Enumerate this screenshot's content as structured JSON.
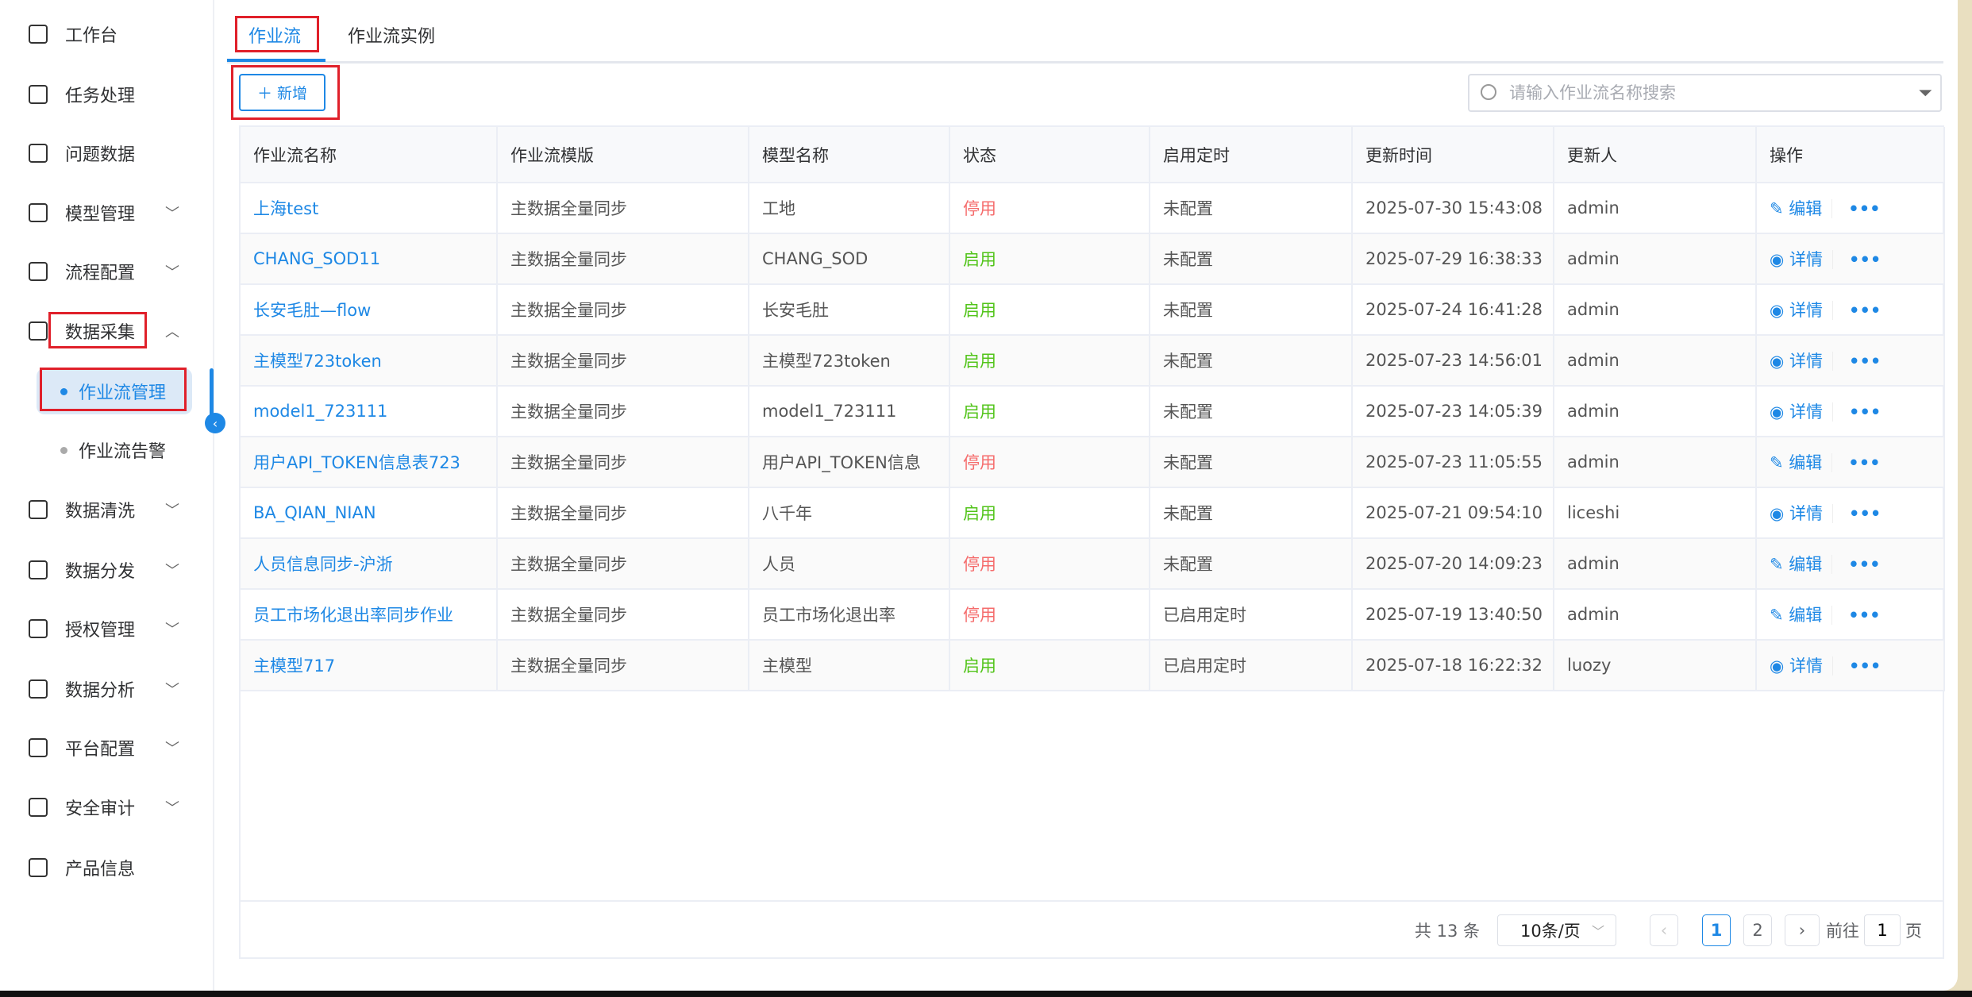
{
  "sidebar": {
    "items": [
      {
        "label": "工作台",
        "icon": "workbench-icon",
        "chevron": ""
      },
      {
        "label": "任务处理",
        "icon": "task-icon",
        "chevron": ""
      },
      {
        "label": "问题数据",
        "icon": "document-icon",
        "chevron": ""
      },
      {
        "label": "模型管理",
        "icon": "database-icon",
        "chevron": "﹀"
      },
      {
        "label": "流程配置",
        "icon": "grid-icon",
        "chevron": "﹀"
      },
      {
        "label": "数据采集",
        "icon": "sitemap-icon",
        "chevron": "︿"
      },
      {
        "label": "数据清洗",
        "icon": "grid-icon",
        "chevron": "﹀"
      },
      {
        "label": "数据分发",
        "icon": "send-icon",
        "chevron": "﹀"
      },
      {
        "label": "授权管理",
        "icon": "shield-icon",
        "chevron": "﹀"
      },
      {
        "label": "数据分析",
        "icon": "grid-icon",
        "chevron": "﹀"
      },
      {
        "label": "平台配置",
        "icon": "wallet-icon",
        "chevron": "﹀"
      },
      {
        "label": "安全审计",
        "icon": "audit-icon",
        "chevron": "﹀"
      },
      {
        "label": "产品信息",
        "icon": "info-list-icon",
        "chevron": ""
      }
    ],
    "subitems": [
      {
        "label": "作业流管理",
        "active": true
      },
      {
        "label": "作业流告警",
        "active": false
      }
    ]
  },
  "tabs": [
    {
      "label": "作业流",
      "active": true
    },
    {
      "label": "作业流实例",
      "active": false
    }
  ],
  "toolbar": {
    "add_label": "＋ 新增",
    "search_placeholder": "请输入作业流名称搜索"
  },
  "table": {
    "columns": [
      "作业流名称",
      "作业流模版",
      "模型名称",
      "状态",
      "启用定时",
      "更新时间",
      "更新人",
      "操作"
    ],
    "rows": [
      [
        "上海test",
        "主数据全量同步",
        "工地",
        "停用",
        "未配置",
        "2025-07-30 15:43:08",
        "admin",
        "编辑"
      ],
      [
        "CHANG_SOD11",
        "主数据全量同步",
        "CHANG_SOD",
        "启用",
        "未配置",
        "2025-07-29 16:38:33",
        "admin",
        "详情"
      ],
      [
        "长安毛肚—flow",
        "主数据全量同步",
        "长安毛肚",
        "启用",
        "未配置",
        "2025-07-24 16:41:28",
        "admin",
        "详情"
      ],
      [
        "主模型723token",
        "主数据全量同步",
        "主模型723token",
        "启用",
        "未配置",
        "2025-07-23 14:56:01",
        "admin",
        "详情"
      ],
      [
        "model1_723111",
        "主数据全量同步",
        "model1_723111",
        "启用",
        "未配置",
        "2025-07-23 14:05:39",
        "admin",
        "详情"
      ],
      [
        "用户API_TOKEN信息表723",
        "主数据全量同步",
        "用户API_TOKEN信息",
        "停用",
        "未配置",
        "2025-07-23 11:05:55",
        "admin",
        "编辑"
      ],
      [
        "BA_QIAN_NIAN",
        "主数据全量同步",
        "八千年",
        "启用",
        "未配置",
        "2025-07-21 09:54:10",
        "liceshi",
        "详情"
      ],
      [
        "人员信息同步-沪浙",
        "主数据全量同步",
        "人员",
        "停用",
        "未配置",
        "2025-07-20 14:09:23",
        "admin",
        "编辑"
      ],
      [
        "员工市场化退出率同步作业",
        "主数据全量同步",
        "员工市场化退出率",
        "停用",
        "已启用定时",
        "2025-07-19 13:40:50",
        "admin",
        "编辑"
      ],
      [
        "主模型717",
        "主数据全量同步",
        "主模型",
        "启用",
        "已启用定时",
        "2025-07-18 16:22:32",
        "luozy",
        "详情"
      ]
    ],
    "more_label": "•••"
  },
  "pagination": {
    "total": "共 13 条",
    "page_size": "10条/页",
    "pages": [
      "1",
      "2"
    ],
    "current": "1",
    "goto_label": "前往",
    "goto_value": "1",
    "page_suffix": "页"
  },
  "colors": {
    "accent": "#1e88e5",
    "enabled": "#52c41a",
    "disabled": "#f56c6c",
    "highlight": "#e0202a"
  }
}
